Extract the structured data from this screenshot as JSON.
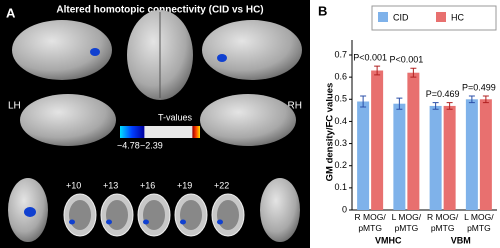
{
  "panel_a": {
    "label": "A",
    "title": "Altered homotopic connectivity (CID vs HC)",
    "left_hemisphere": "LH",
    "right_hemisphere": "RH",
    "colorbar_title": "T-values",
    "colorbar_ticks": [
      "−4.78",
      "−2.39"
    ],
    "slices": [
      "+10",
      "+13",
      "+16",
      "+19",
      "+22"
    ]
  },
  "chart_data": {
    "type": "bar",
    "label": "B",
    "y_label": "GM density/FC values",
    "categories": [
      "R MOG/\npMTG",
      "L MOG/\npMTG",
      "R MOG/\npMTG",
      "L MOG/\npMTG"
    ],
    "groups": [
      "VMHC",
      "VBM"
    ],
    "annotations": [
      "P<0.001",
      "P<0.001",
      "P=0.469",
      "P=0.499"
    ],
    "series": [
      {
        "name": "CID",
        "color": "#7fb2ea",
        "error_color": "#2b4fa8",
        "values": [
          0.49,
          0.48,
          0.47,
          0.5
        ],
        "errors": [
          0.025,
          0.025,
          0.015,
          0.015
        ]
      },
      {
        "name": "HC",
        "color": "#e8706f",
        "error_color": "#b02020",
        "values": [
          0.63,
          0.62,
          0.47,
          0.5
        ],
        "errors": [
          0.02,
          0.02,
          0.015,
          0.015
        ]
      }
    ],
    "ylim": [
      0,
      0.7
    ],
    "yticks": [
      0,
      0.1,
      0.2,
      0.3,
      0.4,
      0.5,
      0.6,
      0.7
    ],
    "legend": "top-right"
  }
}
